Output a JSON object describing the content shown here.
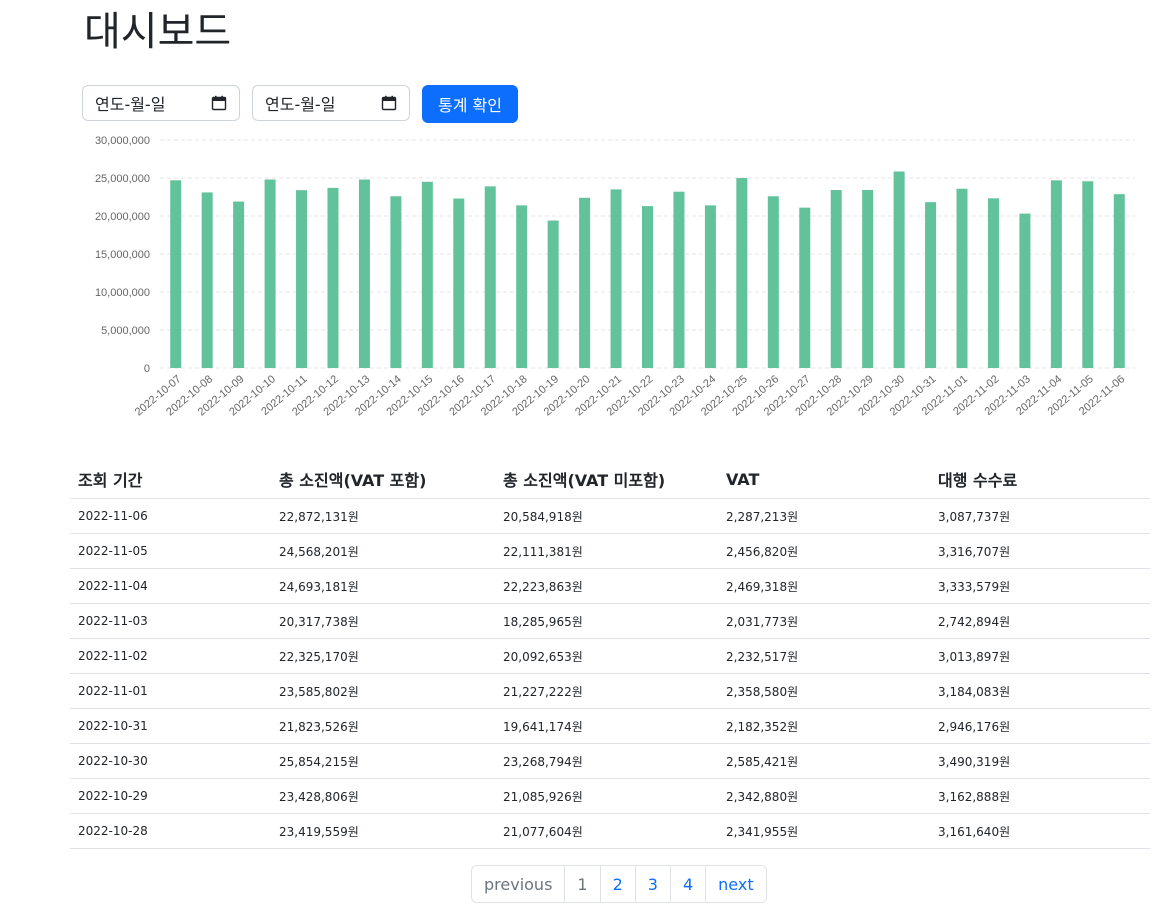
{
  "page": {
    "title": "대시보드"
  },
  "filters": {
    "start_date": {
      "placeholder": "연도-월-일",
      "icon": "calendar-icon"
    },
    "end_date": {
      "placeholder": "연도-월-일",
      "icon": "calendar-icon"
    },
    "submit_label": "통계 확인",
    "accent_color": "#0d6efd"
  },
  "chart_data": {
    "type": "bar",
    "title": "",
    "xlabel": "",
    "ylabel": "",
    "bar_color": "#62c29b",
    "grid": "horizontal dashed",
    "ylim": [
      0,
      30000000
    ],
    "yticks": [
      "0",
      "5,000,000",
      "10,000,000",
      "15,000,000",
      "20,000,000",
      "25,000,000",
      "30,000,000"
    ],
    "categories": [
      "2022-10-07",
      "2022-10-08",
      "2022-10-09",
      "2022-10-10",
      "2022-10-11",
      "2022-10-12",
      "2022-10-13",
      "2022-10-14",
      "2022-10-15",
      "2022-10-16",
      "2022-10-17",
      "2022-10-18",
      "2022-10-19",
      "2022-10-20",
      "2022-10-21",
      "2022-10-22",
      "2022-10-23",
      "2022-10-24",
      "2022-10-25",
      "2022-10-26",
      "2022-10-27",
      "2022-10-28",
      "2022-10-29",
      "2022-10-30",
      "2022-10-31",
      "2022-11-01",
      "2022-11-02",
      "2022-11-03",
      "2022-11-04",
      "2022-11-05",
      "2022-11-06"
    ],
    "values": [
      24700000,
      23100000,
      21900000,
      24800000,
      23400000,
      23700000,
      24800000,
      22600000,
      24500000,
      22300000,
      23900000,
      21400000,
      19400000,
      22400000,
      23500000,
      21300000,
      23200000,
      21400000,
      25000000,
      22600000,
      21100000,
      23419559,
      23428806,
      25854215,
      21823526,
      23585802,
      22325170,
      20317738,
      24693181,
      24568201,
      22872131
    ]
  },
  "table": {
    "headers": [
      "조회 기간",
      "총 소진액(VAT 포함)",
      "총 소진액(VAT 미포함)",
      "VAT",
      "대행 수수료"
    ],
    "rows": [
      [
        "2022-11-06",
        "22,872,131원",
        "20,584,918원",
        "2,287,213원",
        "3,087,737원"
      ],
      [
        "2022-11-05",
        "24,568,201원",
        "22,111,381원",
        "2,456,820원",
        "3,316,707원"
      ],
      [
        "2022-11-04",
        "24,693,181원",
        "22,223,863원",
        "2,469,318원",
        "3,333,579원"
      ],
      [
        "2022-11-03",
        "20,317,738원",
        "18,285,965원",
        "2,031,773원",
        "2,742,894원"
      ],
      [
        "2022-11-02",
        "22,325,170원",
        "20,092,653원",
        "2,232,517원",
        "3,013,897원"
      ],
      [
        "2022-11-01",
        "23,585,802원",
        "21,227,222원",
        "2,358,580원",
        "3,184,083원"
      ],
      [
        "2022-10-31",
        "21,823,526원",
        "19,641,174원",
        "2,182,352원",
        "2,946,176원"
      ],
      [
        "2022-10-30",
        "25,854,215원",
        "23,268,794원",
        "2,585,421원",
        "3,490,319원"
      ],
      [
        "2022-10-29",
        "23,428,806원",
        "21,085,926원",
        "2,342,880원",
        "3,162,888원"
      ],
      [
        "2022-10-28",
        "23,419,559원",
        "21,077,604원",
        "2,341,955원",
        "3,161,640원"
      ]
    ]
  },
  "pagination": {
    "previous": "previous",
    "pages": [
      "1",
      "2",
      "3",
      "4"
    ],
    "next": "next",
    "current": "1"
  }
}
